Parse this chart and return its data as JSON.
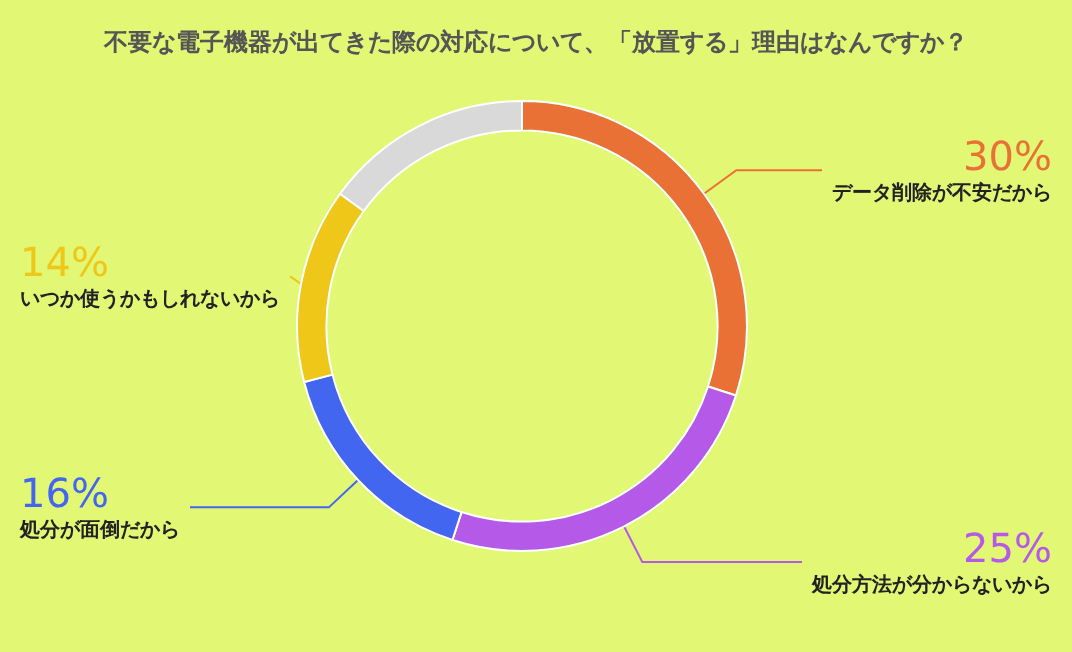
{
  "chart_data": {
    "type": "donut",
    "title": "不要な電子機器が出てきた際の対応について、「放置する」理由はなんですか？",
    "categories": [
      "データ削除が不安だから",
      "処分方法が分からないから",
      "処分が面倒だから",
      "いつか使うかもしれないから",
      null
    ],
    "values": [
      30,
      25,
      16,
      14,
      15
    ],
    "colors": [
      "#e97136",
      "#b55ae8",
      "#4366f0",
      "#eec719",
      "#d9d9d9"
    ],
    "value_labels": [
      "30%",
      "25%",
      "16%",
      "14%",
      null
    ],
    "legend": false
  }
}
